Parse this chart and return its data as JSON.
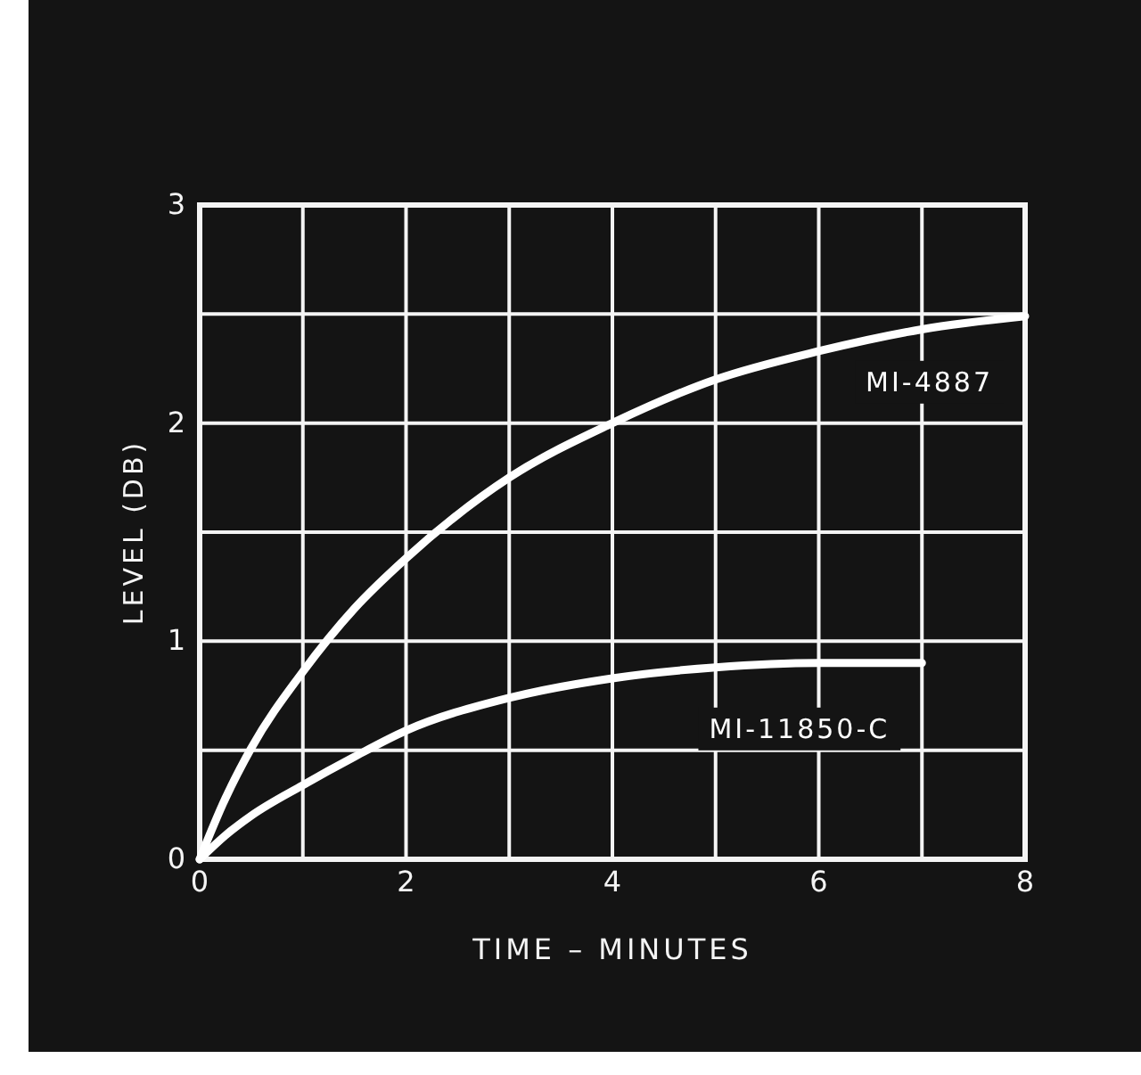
{
  "chart_data": {
    "type": "line",
    "xlabel": "TIME – MINUTES",
    "ylabel": "LEVEL (DB)",
    "xlim": [
      0,
      8
    ],
    "xticks": [
      0,
      {
        "value": 1,
        "label": null
      },
      2,
      {
        "value": 3,
        "label": null
      },
      4,
      {
        "value": 5,
        "label": null
      },
      6,
      {
        "value": 7,
        "label": null
      },
      8
    ],
    "ylim": [
      0,
      3
    ],
    "yticks": [
      0,
      {
        "value": 0.5,
        "label": null
      },
      1,
      {
        "value": 1.5,
        "label": null
      },
      2,
      {
        "value": 2.5,
        "label": null
      },
      3
    ],
    "grid": true,
    "series": [
      {
        "name": "MI-4887",
        "color": "#ffffff",
        "x": [
          0,
          0.25,
          0.5,
          1,
          1.5,
          2,
          3,
          4,
          5,
          6,
          7,
          8
        ],
        "values": [
          0,
          0.28,
          0.51,
          0.86,
          1.15,
          1.38,
          1.75,
          2.0,
          2.2,
          2.33,
          2.43,
          2.49
        ]
      },
      {
        "name": "MI-11850-C",
        "color": "#ffffff",
        "x": [
          0,
          0.25,
          0.5,
          1,
          1.5,
          2,
          3,
          4,
          5,
          6,
          7
        ],
        "values": [
          0,
          0.11,
          0.2,
          0.34,
          0.47,
          0.59,
          0.74,
          0.83,
          0.88,
          0.9,
          0.9
        ]
      }
    ]
  }
}
